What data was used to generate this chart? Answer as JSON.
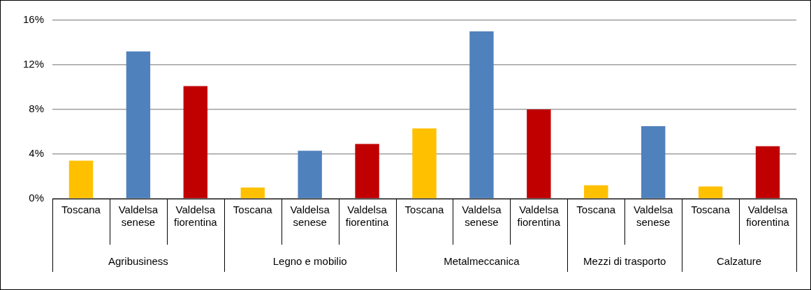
{
  "chart_data": {
    "type": "bar",
    "categories": [
      "Toscana",
      "Valdelsa senese",
      "Valdelsa fiorentina",
      "Toscana",
      "Valdelsa senese",
      "Valdelsa fiorentina",
      "Toscana",
      "Valdelsa senese",
      "Valdelsa fiorentina",
      "Toscana",
      "Valdelsa senese",
      "Toscana",
      "Valdelsa fiorentina"
    ],
    "values": [
      3.4,
      13.2,
      10.1,
      1.0,
      4.3,
      4.9,
      6.3,
      15.0,
      8.0,
      1.2,
      6.5,
      1.1,
      4.7
    ],
    "colors": [
      "#ffc000",
      "#4f81bd",
      "#c00000",
      "#ffc000",
      "#4f81bd",
      "#c00000",
      "#ffc000",
      "#4f81bd",
      "#c00000",
      "#ffc000",
      "#4f81bd",
      "#ffc000",
      "#c00000"
    ],
    "ylim": [
      0,
      16
    ],
    "yticks": [
      {
        "value": 0,
        "label": "0%"
      },
      {
        "value": 4,
        "label": "4%"
      },
      {
        "value": 8,
        "label": "8%"
      },
      {
        "value": 12,
        "label": "12%"
      },
      {
        "value": 16,
        "label": "16%"
      }
    ],
    "annotations": [
      "Agribusiness",
      "Legno e mobilio",
      "Metalmeccanica",
      "Mezzi di trasporto",
      "Calzature"
    ],
    "grid": "y",
    "legend": false
  }
}
